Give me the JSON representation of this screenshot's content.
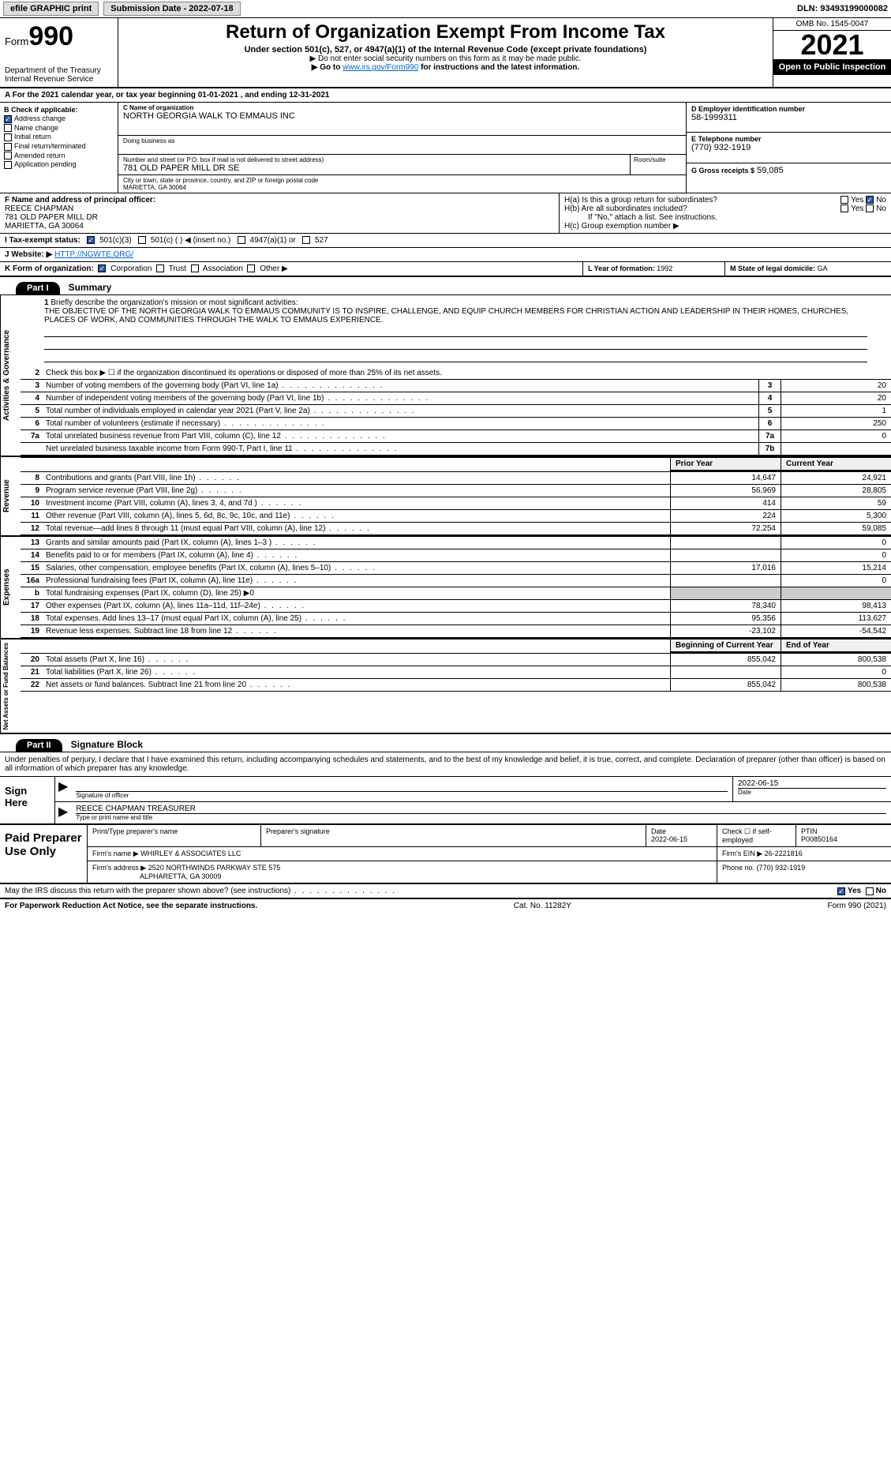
{
  "topbar": {
    "efile": "efile GRAPHIC print",
    "submission_label": "Submission Date - 2022-07-18",
    "dln": "DLN: 93493199000082"
  },
  "header": {
    "form_prefix": "Form",
    "form_number": "990",
    "dept": "Department of the Treasury",
    "irs": "Internal Revenue Service",
    "title": "Return of Organization Exempt From Income Tax",
    "subtitle": "Under section 501(c), 527, or 4947(a)(1) of the Internal Revenue Code (except private foundations)",
    "ssn_note": "▶ Do not enter social security numbers on this form as it may be made public.",
    "goto": "▶ Go to www.irs.gov/Form990 for instructions and the latest information.",
    "goto_url": "www.irs.gov/Form990",
    "omb": "OMB No. 1545-0047",
    "year": "2021",
    "open": "Open to Public Inspection"
  },
  "row_a": "A For the 2021 calendar year, or tax year beginning 01-01-2021    , and ending 12-31-2021",
  "col_b": {
    "label": "B Check if applicable:",
    "items": [
      "Address change",
      "Name change",
      "Initial return",
      "Final return/terminated",
      "Amended return",
      "Application pending"
    ],
    "checked": [
      true,
      false,
      false,
      false,
      false,
      false
    ]
  },
  "col_c": {
    "name_label": "C Name of organization",
    "name": "NORTH GEORGIA WALK TO EMMAUS INC",
    "dba_label": "Doing business as",
    "dba": "",
    "street_label": "Number and street (or P.O. box if mail is not delivered to street address)",
    "street": "781 OLD PAPER MILL DR SE",
    "room_label": "Room/suite",
    "city_label": "City or town, state or province, country, and ZIP or foreign postal code",
    "city": "MARIETTA, GA  30064"
  },
  "col_d": {
    "label": "D Employer identification number",
    "val": "58-1999311"
  },
  "col_e": {
    "label": "E Telephone number",
    "val": "(770) 932-1919"
  },
  "col_g": {
    "label": "G Gross receipts $",
    "val": "59,085"
  },
  "col_f": {
    "label": "F  Name and address of principal officer:",
    "name": "REECE CHAPMAN",
    "addr1": "781 OLD PAPER MILL DR",
    "addr2": "MARIETTA, GA  30064"
  },
  "col_h": {
    "a": "H(a)  Is this a group return for subordinates?",
    "b": "H(b)  Are all subordinates included?",
    "b_note": "If \"No,\" attach a list. See instructions.",
    "c": "H(c)  Group exemption number ▶",
    "yes": "Yes",
    "no": "No"
  },
  "row_i": {
    "label": "I    Tax-exempt status:",
    "opts": [
      "501(c)(3)",
      "501(c) (  ) ◀ (insert no.)",
      "4947(a)(1) or",
      "527"
    ]
  },
  "row_j": {
    "label": "J   Website: ▶",
    "val": "HTTP://NGWTE.ORG/"
  },
  "row_k": {
    "label": "K Form of organization:",
    "opts": [
      "Corporation",
      "Trust",
      "Association",
      "Other ▶"
    ]
  },
  "row_l": {
    "label": "L Year of formation:",
    "val": "1992"
  },
  "row_m": {
    "label": "M State of legal domicile:",
    "val": "GA"
  },
  "part1": {
    "hdr": "Part I",
    "title": "Summary"
  },
  "mission": {
    "num": "1",
    "label": "Briefly describe the organization's mission or most significant activities:",
    "text": "THE OBJECTIVE OF THE NORTH GEORGIA WALK TO EMMAUS COMMUNITY IS TO INSPIRE, CHALLENGE, AND EQUIP CHURCH MEMBERS FOR CHRISTIAN ACTION AND LEADERSHIP IN THEIR HOMES, CHURCHES, PLACES OF WORK, AND COMMUNITIES THROUGH THE WALK TO EMMAUS EXPERIENCE."
  },
  "tabs": {
    "gov": "Activities & Governance",
    "rev": "Revenue",
    "exp": "Expenses",
    "net": "Net Assets or Fund Balances"
  },
  "gov_rows": [
    {
      "n": "2",
      "t": "Check this box ▶ ☐  if the organization discontinued its operations or disposed of more than 25% of its net assets."
    },
    {
      "n": "3",
      "t": "Number of voting members of the governing body (Part VI, line 1a)",
      "box": "3",
      "v": "20"
    },
    {
      "n": "4",
      "t": "Number of independent voting members of the governing body (Part VI, line 1b)",
      "box": "4",
      "v": "20"
    },
    {
      "n": "5",
      "t": "Total number of individuals employed in calendar year 2021 (Part V, line 2a)",
      "box": "5",
      "v": "1"
    },
    {
      "n": "6",
      "t": "Total number of volunteers (estimate if necessary)",
      "box": "6",
      "v": "250"
    },
    {
      "n": "7a",
      "t": "Total unrelated business revenue from Part VIII, column (C), line 12",
      "box": "7a",
      "v": "0"
    },
    {
      "n": "",
      "t": "Net unrelated business taxable income from Form 990-T, Part I, line 11",
      "box": "7b",
      "v": ""
    }
  ],
  "col_hdrs": {
    "prior": "Prior Year",
    "current": "Current Year",
    "begin": "Beginning of Current Year",
    "end": "End of Year"
  },
  "rev_rows": [
    {
      "n": "8",
      "t": "Contributions and grants (Part VIII, line 1h)",
      "p": "14,647",
      "c": "24,921"
    },
    {
      "n": "9",
      "t": "Program service revenue (Part VIII, line 2g)",
      "p": "56,969",
      "c": "28,805"
    },
    {
      "n": "10",
      "t": "Investment income (Part VIII, column (A), lines 3, 4, and 7d )",
      "p": "414",
      "c": "59"
    },
    {
      "n": "11",
      "t": "Other revenue (Part VIII, column (A), lines 5, 6d, 8c, 9c, 10c, and 11e)",
      "p": "224",
      "c": "5,300"
    },
    {
      "n": "12",
      "t": "Total revenue—add lines 8 through 11 (must equal Part VIII, column (A), line 12)",
      "p": "72,254",
      "c": "59,085"
    }
  ],
  "exp_rows": [
    {
      "n": "13",
      "t": "Grants and similar amounts paid (Part IX, column (A), lines 1–3 )",
      "p": "",
      "c": "0"
    },
    {
      "n": "14",
      "t": "Benefits paid to or for members (Part IX, column (A), line 4)",
      "p": "",
      "c": "0"
    },
    {
      "n": "15",
      "t": "Salaries, other compensation, employee benefits (Part IX, column (A), lines 5–10)",
      "p": "17,016",
      "c": "15,214"
    },
    {
      "n": "16a",
      "t": "Professional fundraising fees (Part IX, column (A), line 11e)",
      "p": "",
      "c": "0"
    },
    {
      "n": "b",
      "t": "Total fundraising expenses (Part IX, column (D), line 25) ▶0",
      "grey": true
    },
    {
      "n": "17",
      "t": "Other expenses (Part IX, column (A), lines 11a–11d, 11f–24e)",
      "p": "78,340",
      "c": "98,413"
    },
    {
      "n": "18",
      "t": "Total expenses. Add lines 13–17 (must equal Part IX, column (A), line 25)",
      "p": "95,356",
      "c": "113,627"
    },
    {
      "n": "19",
      "t": "Revenue less expenses. Subtract line 18 from line 12",
      "p": "-23,102",
      "c": "-54,542"
    }
  ],
  "net_rows": [
    {
      "n": "20",
      "t": "Total assets (Part X, line 16)",
      "p": "855,042",
      "c": "800,538"
    },
    {
      "n": "21",
      "t": "Total liabilities (Part X, line 26)",
      "p": "",
      "c": "0"
    },
    {
      "n": "22",
      "t": "Net assets or fund balances. Subtract line 21 from line 20",
      "p": "855,042",
      "c": "800,538"
    }
  ],
  "part2": {
    "hdr": "Part II",
    "title": "Signature Block"
  },
  "sig": {
    "decl": "Under penalties of perjury, I declare that I have examined this return, including accompanying schedules and statements, and to the best of my knowledge and belief, it is true, correct, and complete. Declaration of preparer (other than officer) is based on all information of which preparer has any knowledge.",
    "sign_here": "Sign Here",
    "sig_officer": "Signature of officer",
    "date": "Date",
    "date_val": "2022-06-15",
    "name_title": "REECE CHAPMAN  TREASURER",
    "type_name": "Type or print name and title"
  },
  "paid": {
    "label": "Paid Preparer Use Only",
    "h1": "Print/Type preparer's name",
    "h2": "Preparer's signature",
    "h3": "Date",
    "h3v": "2022-06-15",
    "h4": "Check ☐ if self-employed",
    "h5": "PTIN",
    "h5v": "P00850164",
    "firm_name_lbl": "Firm's name    ▶",
    "firm_name": "WHIRLEY & ASSOCIATES LLC",
    "firm_ein_lbl": "Firm's EIN ▶",
    "firm_ein": "26-2221816",
    "firm_addr_lbl": "Firm's address ▶",
    "firm_addr1": "2520 NORTHWINDS PARKWAY STE 575",
    "firm_addr2": "ALPHARETTA, GA  30009",
    "phone_lbl": "Phone no.",
    "phone": "(770) 932-1919"
  },
  "may_irs": "May the IRS discuss this return with the preparer shown above? (see instructions)",
  "footer": {
    "pra": "For Paperwork Reduction Act Notice, see the separate instructions.",
    "cat": "Cat. No. 11282Y",
    "form": "Form 990 (2021)"
  }
}
